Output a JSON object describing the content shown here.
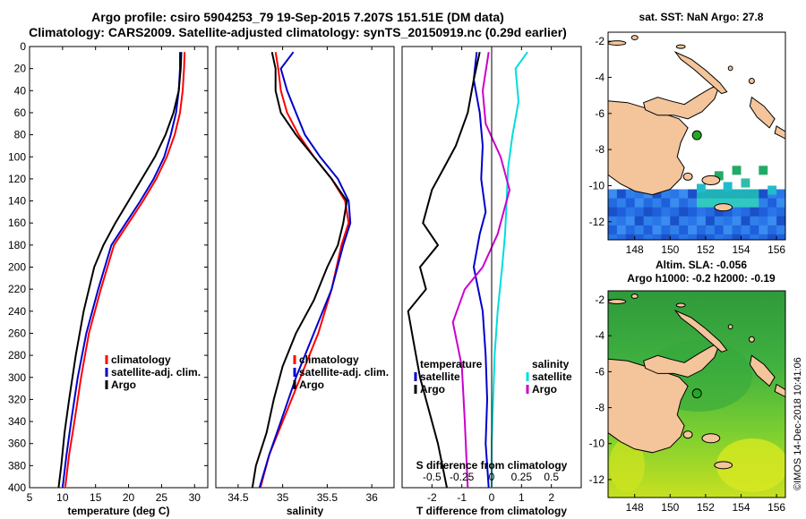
{
  "header": {
    "title_line1": "Argo profile: csiro 5904253_79 19-Sep-2015 7.207S 151.51E (DM data)",
    "title_line2": "Climatology: CARS2009. Satellite-adjusted climatology: synTS_20150919.nc (0.29d earlier)"
  },
  "chart_data": [
    {
      "type": "line",
      "name": "temperature",
      "xlabel": "temperature (deg C)",
      "ylabel": "",
      "xlim": [
        5,
        32
      ],
      "ylim": [
        400,
        0
      ],
      "xticks": [
        5,
        10,
        15,
        20,
        25,
        30
      ],
      "yticks": [
        0,
        20,
        40,
        60,
        80,
        100,
        120,
        140,
        160,
        180,
        200,
        220,
        240,
        260,
        280,
        300,
        320,
        340,
        360,
        380,
        400
      ],
      "legend": [
        "climatology",
        "satellite-adj. clim.",
        "Argo"
      ],
      "series": [
        {
          "name": "climatology",
          "color": "#ff0000",
          "x": [
            28.5,
            28.4,
            28.2,
            27.8,
            27.0,
            25.8,
            24.2,
            22.2,
            20.0,
            17.8,
            15.8,
            14.0,
            12.8,
            11.8,
            11.0,
            10.4
          ],
          "y": [
            5,
            20,
            40,
            60,
            80,
            100,
            120,
            140,
            160,
            180,
            220,
            260,
            300,
            340,
            370,
            400
          ]
        },
        {
          "name": "satellite-adj. clim.",
          "color": "#0000cc",
          "x": [
            27.8,
            27.8,
            27.6,
            27.2,
            26.4,
            25.4,
            23.8,
            21.8,
            19.6,
            17.4,
            15.4,
            13.6,
            12.3,
            11.3,
            10.6,
            10.0
          ],
          "y": [
            5,
            20,
            40,
            60,
            80,
            100,
            120,
            140,
            160,
            180,
            220,
            260,
            300,
            340,
            370,
            400
          ]
        },
        {
          "name": "Argo",
          "color": "#000000",
          "x": [
            28.0,
            27.9,
            27.6,
            26.8,
            25.6,
            24.0,
            22.0,
            20.0,
            18.0,
            16.2,
            14.8,
            13.2,
            12.0,
            11.0,
            10.3,
            9.8,
            9.4
          ],
          "y": [
            5,
            20,
            40,
            60,
            80,
            100,
            120,
            140,
            160,
            180,
            200,
            240,
            280,
            320,
            350,
            380,
            400
          ]
        }
      ]
    },
    {
      "type": "line",
      "name": "salinity",
      "xlabel": "salinity",
      "xlim": [
        34.25,
        36.25
      ],
      "ylim": [
        400,
        0
      ],
      "xticks": [
        34.5,
        35,
        35.5,
        36
      ],
      "xticklabels": [
        "34.5",
        "35",
        "35.5",
        "36"
      ],
      "legend": [
        "climatology",
        "satellite-adj. clim.",
        "Argo"
      ],
      "series": [
        {
          "name": "climatology",
          "color": "#ff0000",
          "x": [
            34.92,
            34.95,
            34.98,
            35.05,
            35.18,
            35.35,
            35.55,
            35.7,
            35.74,
            35.66,
            35.55,
            35.4,
            35.2,
            35.0,
            34.85,
            34.75
          ],
          "y": [
            5,
            20,
            40,
            60,
            80,
            100,
            120,
            140,
            160,
            180,
            220,
            260,
            300,
            340,
            370,
            400
          ]
        },
        {
          "name": "satellite-adj. clim.",
          "color": "#0000cc",
          "x": [
            35.12,
            34.98,
            35.05,
            35.15,
            35.25,
            35.42,
            35.62,
            35.74,
            35.76,
            35.68,
            35.55,
            35.35,
            35.15,
            34.98,
            34.85,
            34.74
          ],
          "y": [
            5,
            20,
            40,
            60,
            80,
            100,
            120,
            140,
            160,
            180,
            220,
            260,
            300,
            340,
            370,
            400
          ]
        },
        {
          "name": "Argo",
          "color": "#000000",
          "x": [
            34.88,
            34.92,
            34.92,
            34.98,
            35.15,
            35.35,
            35.55,
            35.72,
            35.68,
            35.62,
            35.5,
            35.35,
            35.15,
            35.0,
            34.9,
            34.82,
            34.7,
            34.66
          ],
          "y": [
            5,
            20,
            40,
            60,
            80,
            100,
            120,
            140,
            160,
            180,
            200,
            230,
            260,
            290,
            320,
            350,
            380,
            400
          ]
        }
      ]
    },
    {
      "type": "line",
      "name": "difference from climatology",
      "xlabel": "T difference from climatology",
      "xlim": [
        -3,
        3
      ],
      "ylim": [
        400,
        0
      ],
      "xticks": [
        -2,
        -1,
        0,
        1,
        2
      ],
      "upper_xlabel": "S difference from climatology",
      "upper_xticklabels": [
        "-0.5",
        "-0.25",
        "0",
        "0.25",
        "0.5"
      ],
      "legend": [
        "temperature",
        "satellite",
        "Argo",
        "salinity",
        "satellite",
        "Argo"
      ],
      "series": [
        {
          "name": "temperature satellite",
          "color": "#0000cc",
          "x": [
            -0.5,
            -0.6,
            -0.4,
            -0.3,
            -0.35,
            -0.2,
            -0.4,
            -0.6,
            -0.3,
            -0.2,
            -0.15,
            -0.2,
            -0.1
          ],
          "y": [
            5,
            30,
            60,
            90,
            120,
            150,
            170,
            200,
            240,
            280,
            320,
            360,
            400
          ]
        },
        {
          "name": "temperature Argo",
          "color": "#000000",
          "x": [
            -0.4,
            -0.6,
            -0.8,
            -1.2,
            -1.6,
            -2.0,
            -2.3,
            -1.8,
            -2.4,
            -2.2,
            -2.8,
            -2.6,
            -2.4,
            -2.1,
            -1.8,
            -1.5
          ],
          "y": [
            5,
            30,
            60,
            90,
            110,
            130,
            160,
            180,
            200,
            220,
            240,
            270,
            300,
            330,
            360,
            400
          ]
        },
        {
          "name": "salinity satellite",
          "color": "#00dddd",
          "x": [
            1.2,
            0.8,
            0.9,
            0.7,
            0.55,
            0.5,
            0.45,
            0.35,
            0.2,
            0.1,
            0.05,
            0.0,
            0.0
          ],
          "y": [
            5,
            20,
            50,
            80,
            110,
            140,
            170,
            200,
            240,
            280,
            320,
            360,
            400
          ]
        },
        {
          "name": "salinity Argo",
          "color": "#cc00cc",
          "x": [
            -0.1,
            -0.3,
            -0.2,
            0.3,
            0.6,
            0.4,
            0.2,
            -0.3,
            -0.9,
            -1.3,
            -1.0,
            -0.9,
            -0.8
          ],
          "y": [
            5,
            40,
            70,
            100,
            130,
            150,
            170,
            200,
            220,
            250,
            290,
            340,
            400
          ]
        }
      ]
    },
    {
      "type": "heatmap",
      "name": "SST map",
      "title": "sat. SST: NaN  Argo: 27.8",
      "xticks": [
        "148",
        "150",
        "152",
        "154",
        "156"
      ],
      "yticks": [
        "-2",
        "-4",
        "-6",
        "-8",
        "-10",
        "-12"
      ],
      "xlim": [
        146.5,
        156.5
      ],
      "ylim": [
        -13,
        -1.5
      ],
      "argo_position": {
        "lon": 151.51,
        "lat": -7.207
      }
    },
    {
      "type": "heatmap",
      "name": "SLA map",
      "title_line1": "Altim. SLA: -0.056",
      "title_line2": "Argo h1000: -0.2 h2000: -0.19",
      "xticks": [
        "148",
        "150",
        "152",
        "154",
        "156"
      ],
      "yticks": [
        "-2",
        "-4",
        "-6",
        "-8",
        "-10",
        "-12"
      ],
      "xlim": [
        146.5,
        156.5
      ],
      "ylim": [
        -13,
        -1.5
      ],
      "argo_position": {
        "lon": 151.51,
        "lat": -7.207
      }
    }
  ],
  "footer": {
    "credit": "©IMOS 14-Dec-2018 10:41:06"
  }
}
